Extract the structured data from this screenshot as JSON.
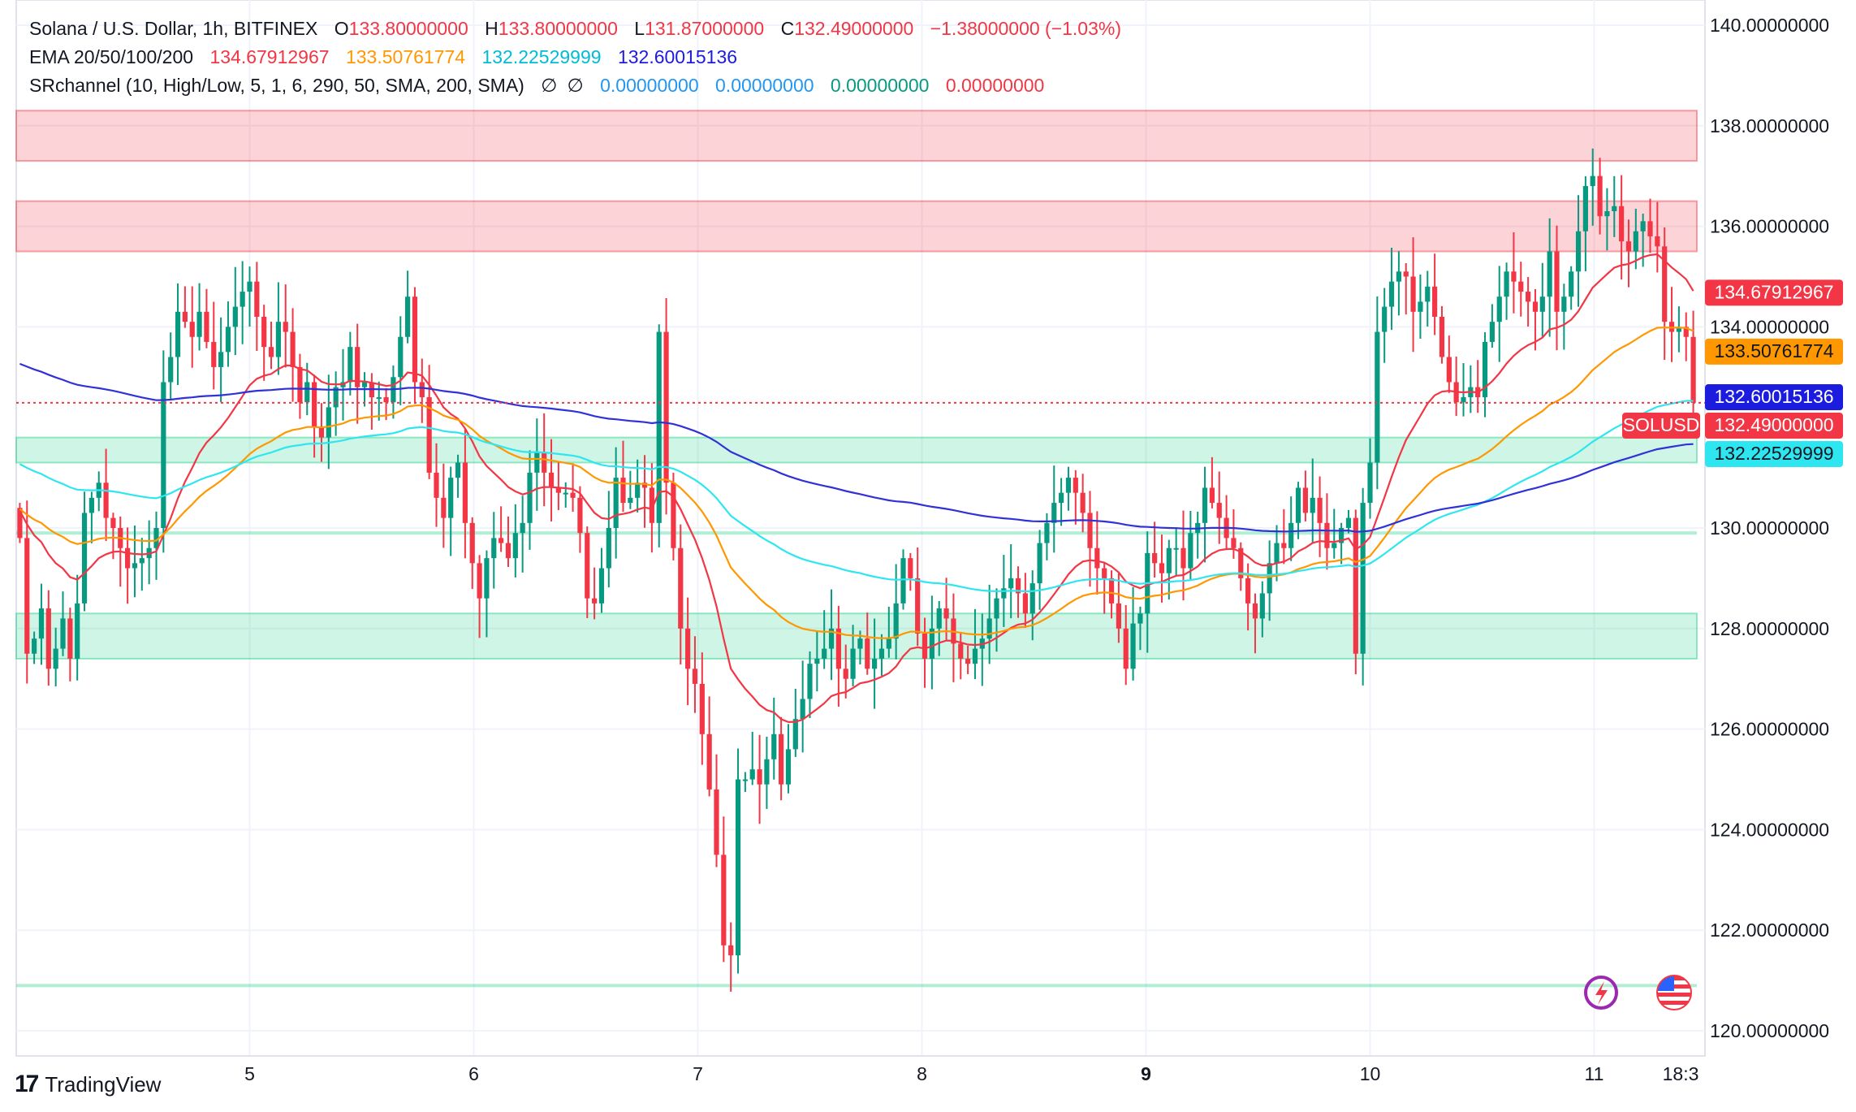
{
  "header": {
    "symbol_title": "Solana / U.S. Dollar, 1h, BITFINEX",
    "ohlc": {
      "open_label": "O",
      "open": "133.80000000",
      "high_label": "H",
      "high": "133.80000000",
      "low_label": "L",
      "low": "131.87000000",
      "close_label": "C",
      "close": "132.49000000",
      "change": "−1.38000000 (−1.03%)"
    }
  },
  "indicators": {
    "ema": {
      "label": "EMA 20/50/100/200",
      "values": [
        "134.67912967",
        "133.50761774",
        "132.22529999",
        "132.60015136"
      ],
      "colors": [
        "#f23645",
        "#ff9800",
        "#2ee6f0",
        "#3131d8"
      ]
    },
    "srchannel": {
      "label": "SRchannel (10, High/Low, 5, 1, 6, 290, 50, SMA, 200, SMA)",
      "symbols": [
        "∅",
        "∅"
      ],
      "values": [
        "0.00000000",
        "0.00000000",
        "0.00000000",
        "0.00000000"
      ],
      "colors": [
        "#2196f3",
        "#2196f3",
        "#089981",
        "#f23645"
      ]
    }
  },
  "price_axis": {
    "ticks": [
      "140.00000000",
      "138.00000000",
      "136.00000000",
      "134.00000000",
      "130.00000000",
      "128.00000000",
      "126.00000000",
      "124.00000000",
      "122.00000000",
      "120.00000000"
    ],
    "badges": [
      {
        "label": "134.67912967",
        "value": 134.679,
        "color": "#f23645",
        "text_color": "#ffffff"
      },
      {
        "label": "133.50761774",
        "value": 133.508,
        "color": "#ff9800",
        "text_color": "#131722"
      },
      {
        "label": "132.60015136",
        "value": 132.6,
        "color": "#1c1cdf",
        "text_color": "#ffffff"
      },
      {
        "label": "132.49000000",
        "value": 132.49,
        "color": "#f23645",
        "text_color": "#ffffff"
      },
      {
        "label": "132.22529999",
        "value": 132.225,
        "color": "#2ee6f0",
        "text_color": "#131722"
      }
    ],
    "symbol_tag": "SOLUSD"
  },
  "time_axis": {
    "labels": [
      "5",
      "6",
      "7",
      "8",
      "9",
      "10",
      "11",
      "18:3"
    ]
  },
  "chart_data": {
    "type": "candlestick",
    "timeframe": "1h",
    "ylim": [
      119.5,
      140.5
    ],
    "up_color": "#089981",
    "down_color": "#f23645",
    "sr_zones": [
      {
        "low": 137.3,
        "high": 138.3,
        "type": "resistance"
      },
      {
        "low": 135.5,
        "high": 136.5,
        "type": "resistance"
      },
      {
        "low": 131.3,
        "high": 131.8,
        "type": "support"
      },
      {
        "low": 127.4,
        "high": 128.3,
        "type": "support"
      },
      {
        "low": 129.9,
        "high": 129.9,
        "type": "support-line"
      },
      {
        "low": 120.9,
        "high": 120.9,
        "type": "support-line"
      }
    ],
    "last_price": 132.49,
    "candle_closes": [
      129.8,
      127.5,
      127.8,
      128.4,
      127.2,
      127.6,
      128.2,
      127.4,
      128.5,
      130.3,
      130.6,
      130.9,
      130.2,
      130.0,
      129.6,
      129.2,
      129.3,
      129.4,
      129.6,
      130.0,
      132.9,
      133.4,
      134.3,
      134.1,
      133.8,
      134.3,
      133.7,
      133.2,
      133.5,
      134.0,
      134.4,
      134.7,
      134.9,
      134.2,
      133.6,
      133.4,
      134.1,
      133.9,
      133.2,
      132.5,
      132.9,
      132.0,
      131.8,
      132.4,
      132.8,
      132.9,
      133.6,
      132.8,
      132.9,
      132.6,
      132.6,
      132.5,
      133.0,
      133.8,
      134.6,
      132.9,
      132.6,
      131.1,
      130.6,
      130.2,
      131.0,
      131.3,
      130.1,
      129.3,
      128.6,
      129.4,
      129.8,
      129.7,
      129.4,
      129.9,
      130.1,
      131.1,
      131.5,
      131.1,
      130.8,
      130.7,
      130.7,
      130.6,
      129.9,
      128.6,
      128.5,
      129.2,
      130.0,
      131.0,
      130.5,
      130.6,
      130.9,
      130.8,
      130.1,
      133.9,
      130.9,
      129.6,
      128.0,
      127.2,
      126.9,
      125.9,
      124.8,
      123.5,
      121.7,
      121.5,
      125.0,
      125.0,
      125.2,
      124.9,
      125.4,
      125.9,
      124.9,
      125.6,
      126.2,
      126.6,
      127.3,
      127.4,
      127.6,
      128.0,
      127.2,
      127.0,
      127.6,
      127.8,
      127.2,
      127.4,
      127.6,
      127.8,
      128.5,
      129.4,
      129.0,
      127.9,
      127.4,
      128.0,
      128.4,
      128.2,
      127.7,
      127.4,
      127.3,
      127.6,
      127.8,
      128.2,
      128.6,
      128.8,
      129.0,
      128.7,
      128.3,
      128.9,
      129.7,
      130.1,
      130.5,
      130.7,
      131.0,
      130.7,
      130.3,
      129.6,
      129.2,
      129.0,
      128.5,
      128.0,
      127.2,
      128.1,
      128.3,
      129.5,
      129.3,
      129.1,
      129.6,
      129.6,
      129.2,
      129.9,
      130.1,
      130.8,
      130.5,
      130.2,
      129.8,
      129.6,
      129.0,
      128.5,
      128.2,
      128.7,
      129.3,
      129.7,
      129.6,
      130.1,
      130.8,
      130.3,
      130.6,
      130.1,
      129.6,
      129.7,
      130.0,
      130.2,
      127.5,
      130.5,
      131.3,
      133.9,
      134.4,
      134.9,
      135.1,
      135.0,
      134.3,
      134.5,
      134.8,
      134.2,
      133.4,
      132.9,
      132.5,
      132.6,
      132.8,
      132.6,
      133.7,
      134.1,
      134.6,
      135.1,
      134.9,
      134.7,
      134.5,
      134.3,
      134.6,
      135.5,
      134.3,
      134.6,
      135.1,
      135.9,
      136.8,
      137.0,
      136.2,
      136.3,
      136.4,
      135.7,
      135.5,
      135.9,
      136.1,
      135.8,
      135.6,
      134.1,
      133.9,
      134.0,
      133.8,
      132.49
    ]
  }
}
